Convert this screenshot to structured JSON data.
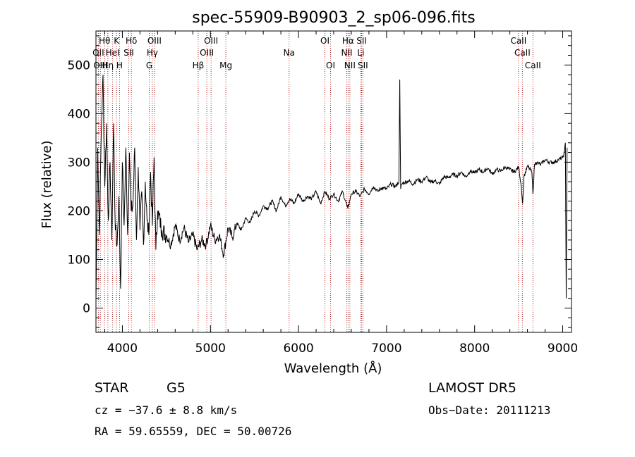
{
  "chart_data": {
    "type": "line",
    "title": "spec-55909-B90903_2_sp06-096.fits",
    "xlabel": "Wavelength (Å)",
    "ylabel": "Flux (relative)",
    "xlim": [
      3700,
      9100
    ],
    "ylim": [
      -50,
      570
    ],
    "x_ticks": [
      4000,
      5000,
      6000,
      7000,
      8000,
      9000
    ],
    "y_ticks": [
      0,
      100,
      200,
      300,
      400,
      500
    ],
    "grid": false,
    "line_color": "#000000",
    "marker_color": "#b22222",
    "series": [
      {
        "x": [
          3700,
          3720,
          3740,
          3760,
          3780,
          3800,
          3820,
          3840,
          3860,
          3880,
          3900,
          3920,
          3940,
          3960,
          3980,
          4000,
          4020,
          4040,
          4060,
          4080,
          4100,
          4120,
          4140,
          4160,
          4180,
          4200,
          4220,
          4240,
          4260,
          4280,
          4300,
          4320,
          4340,
          4360,
          4380,
          4400,
          4450,
          4500,
          4550,
          4600,
          4650,
          4700,
          4750,
          4800,
          4850,
          4900,
          4950,
          5000,
          5050,
          5100,
          5150,
          5200,
          5250,
          5300,
          5350,
          5400,
          5450,
          5500,
          5550,
          5600,
          5650,
          5700,
          5750,
          5800,
          5850,
          5900,
          5950,
          6000,
          6050,
          6100,
          6150,
          6200,
          6250,
          6300,
          6350,
          6400,
          6450,
          6500,
          6550,
          6560,
          6600,
          6650,
          6700,
          6750,
          6800,
          6850,
          6900,
          6950,
          7000,
          7050,
          7100,
          7140,
          7150,
          7160,
          7170,
          7200,
          7250,
          7300,
          7350,
          7400,
          7450,
          7500,
          7550,
          7600,
          7650,
          7700,
          7750,
          7800,
          7850,
          7900,
          7950,
          8000,
          8050,
          8100,
          8150,
          8200,
          8250,
          8300,
          8350,
          8400,
          8450,
          8500,
          8530,
          8545,
          8560,
          8600,
          8650,
          8662,
          8680,
          8700,
          8750,
          8800,
          8850,
          8900,
          8950,
          9000,
          9020,
          9030,
          9040,
          9050
        ],
        "values": [
          10,
          330,
          150,
          360,
          480,
          250,
          380,
          180,
          300,
          140,
          380,
          160,
          130,
          230,
          40,
          300,
          170,
          330,
          150,
          320,
          200,
          210,
          330,
          140,
          290,
          160,
          240,
          130,
          260,
          180,
          150,
          280,
          170,
          310,
          120,
          200,
          160,
          150,
          130,
          170,
          140,
          165,
          135,
          150,
          120,
          140,
          130,
          170,
          140,
          150,
          110,
          165,
          145,
          175,
          160,
          185,
          175,
          200,
          190,
          210,
          205,
          220,
          200,
          230,
          210,
          225,
          215,
          235,
          220,
          230,
          225,
          240,
          215,
          240,
          225,
          235,
          220,
          240,
          210,
          205,
          235,
          240,
          230,
          245,
          235,
          250,
          240,
          248,
          245,
          255,
          250,
          260,
          470,
          245,
          255,
          258,
          262,
          255,
          265,
          260,
          270,
          258,
          262,
          255,
          270,
          268,
          275,
          272,
          280,
          270,
          282,
          278,
          285,
          280,
          288,
          276,
          285,
          282,
          290,
          285,
          280,
          290,
          250,
          215,
          270,
          292,
          280,
          235,
          295,
          300,
          295,
          305,
          300,
          300,
          305,
          310,
          320,
          340,
          20,
          330
        ]
      }
    ],
    "lines": [
      {
        "label": "Hθ",
        "x": 3798,
        "row": 1
      },
      {
        "label": "K",
        "x": 3934,
        "row": 1
      },
      {
        "label": "Hδ",
        "x": 4102,
        "row": 1
      },
      {
        "label": "OIII",
        "x": 4364,
        "row": 1
      },
      {
        "label": "OIII",
        "x": 5007,
        "row": 1
      },
      {
        "label": "OI",
        "x": 6300,
        "row": 1
      },
      {
        "label": "Hα",
        "x": 6563,
        "row": 1
      },
      {
        "label": "SII",
        "x": 6717,
        "row": 1
      },
      {
        "label": "CaII",
        "x": 8498,
        "row": 1
      },
      {
        "label": "OII",
        "x": 3727,
        "row": 2
      },
      {
        "label": "HeI",
        "x": 3889,
        "row": 2
      },
      {
        "label": "SII",
        "x": 4072,
        "row": 2
      },
      {
        "label": "Hγ",
        "x": 4340,
        "row": 2
      },
      {
        "label": "OIII",
        "x": 4959,
        "row": 2
      },
      {
        "label": "Na",
        "x": 5893,
        "row": 2
      },
      {
        "label": "NII",
        "x": 6548,
        "row": 2
      },
      {
        "label": "Li",
        "x": 6708,
        "row": 2
      },
      {
        "label": "CaII",
        "x": 8542,
        "row": 2
      },
      {
        "label": "OIII",
        "x": 3750,
        "row": 3
      },
      {
        "label": "Hη",
        "x": 3835,
        "row": 3
      },
      {
        "label": "H",
        "x": 3968,
        "row": 3
      },
      {
        "label": "G",
        "x": 4305,
        "row": 3
      },
      {
        "label": "Hβ",
        "x": 4861,
        "row": 3
      },
      {
        "label": "Mg",
        "x": 5175,
        "row": 3
      },
      {
        "label": "OI",
        "x": 6364,
        "row": 3
      },
      {
        "label": "NII",
        "x": 6583,
        "row": 3
      },
      {
        "label": "SII",
        "x": 6731,
        "row": 3
      },
      {
        "label": "CaII",
        "x": 8662,
        "row": 3
      }
    ]
  },
  "info": {
    "class_label": "STAR",
    "subclass_label": "G5",
    "cz": "cz = −37.6 ± 8.8 km/s",
    "coords": "RA =  59.65559, DEC =  50.00726",
    "survey": "LAMOST DR5",
    "obs_date": "Obs−Date: 20111213"
  }
}
